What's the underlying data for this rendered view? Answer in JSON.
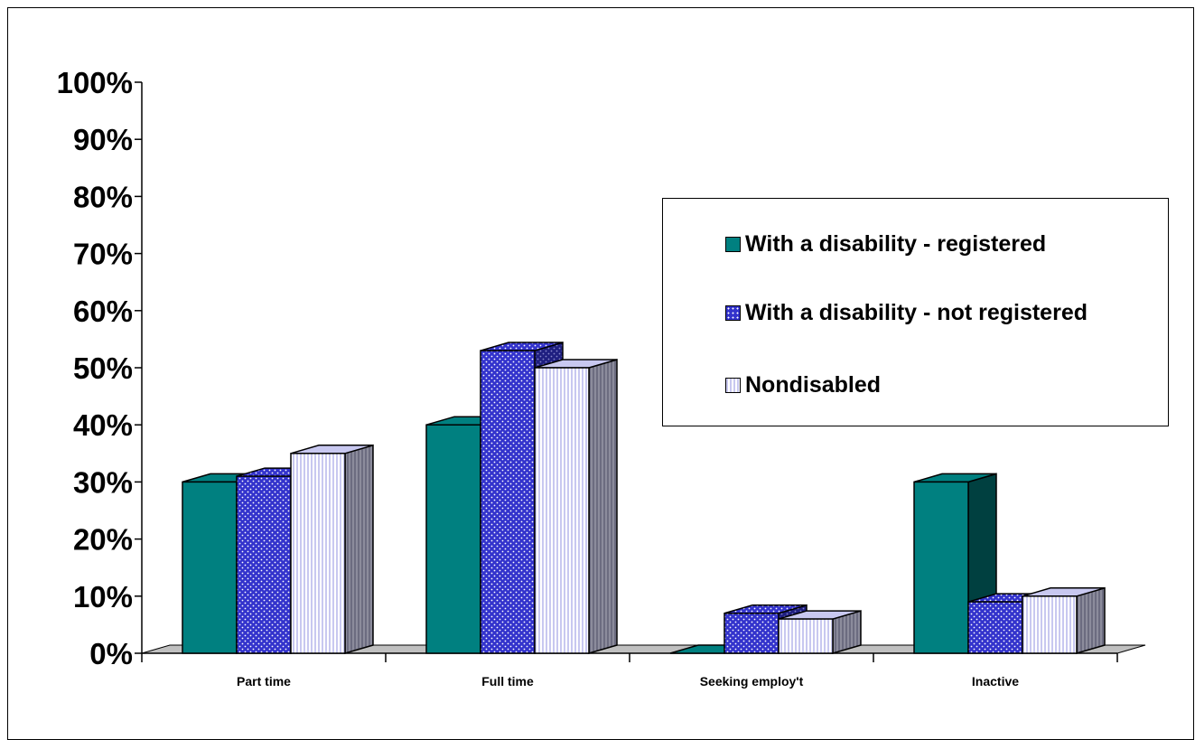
{
  "chart_data": {
    "type": "bar",
    "title": "",
    "xlabel": "",
    "ylabel": "",
    "ylim": [
      0,
      100
    ],
    "y_ticks": [
      "0%",
      "10%",
      "20%",
      "30%",
      "40%",
      "50%",
      "60%",
      "70%",
      "80%",
      "90%",
      "100%"
    ],
    "categories": [
      "Part time",
      "Full time",
      "Seeking employ't",
      "Inactive"
    ],
    "series": [
      {
        "name": "With a disability - registered",
        "values": [
          30,
          40,
          0,
          30
        ],
        "color": "#008080",
        "pattern": "solid"
      },
      {
        "name": "With a disability - not registered",
        "values": [
          31,
          53,
          7,
          9
        ],
        "color": "#3333cc",
        "pattern": "dotted"
      },
      {
        "name": "Nondisabled",
        "values": [
          35,
          50,
          6,
          10
        ],
        "color": "#ccccff",
        "pattern": "vertical-lines"
      }
    ],
    "legend_position": "right",
    "grid": false,
    "style": "3d-clustered-column"
  }
}
